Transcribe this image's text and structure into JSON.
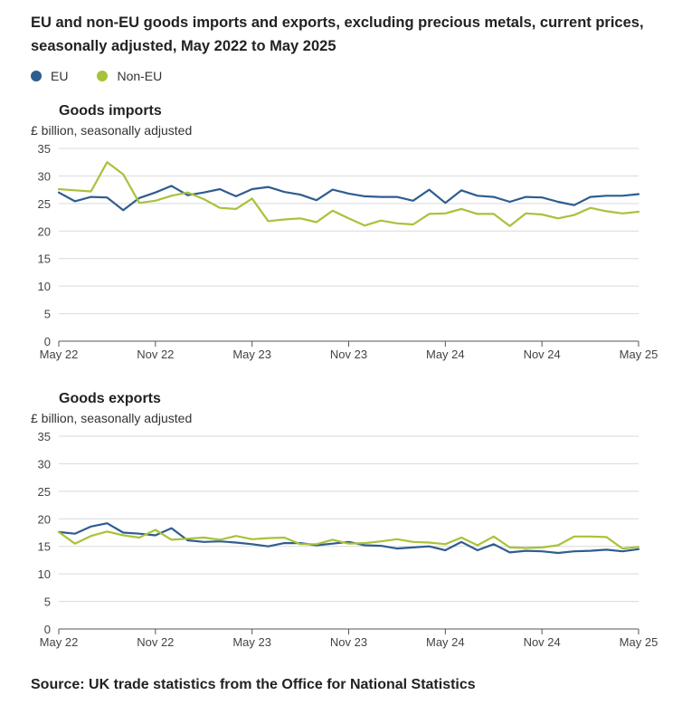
{
  "title": "EU and non-EU goods imports and exports, excluding precious metals, current prices, seasonally adjusted, May 2022 to May 2025",
  "legend": [
    {
      "label": "EU",
      "color": "#2e5d8f"
    },
    {
      "label": "Non-EU",
      "color": "#a8c23a"
    }
  ],
  "source": "Source: UK trade statistics from the Office for National Statistics",
  "chart_data": [
    {
      "type": "line",
      "title": "Goods imports",
      "ylabel": "£ billion, seasonally adjusted",
      "ylim": [
        0,
        35
      ],
      "yticks": [
        0,
        5,
        10,
        15,
        20,
        25,
        30,
        35
      ],
      "xtick_labels": [
        "May 22",
        "Nov 22",
        "May 23",
        "Nov 23",
        "May 24",
        "Nov 24",
        "May 25"
      ],
      "grid": true,
      "series": [
        {
          "name": "EU",
          "color": "#2e5d8f",
          "values": [
            27.0,
            25.4,
            26.2,
            26.1,
            23.8,
            26.0,
            27.0,
            28.2,
            26.5,
            27.0,
            27.6,
            26.3,
            27.6,
            28.0,
            27.1,
            26.6,
            25.6,
            27.5,
            26.8,
            26.3,
            26.2,
            26.2,
            25.5,
            27.5,
            25.1,
            27.4,
            26.4,
            26.2,
            25.3,
            26.2,
            26.1,
            25.3,
            24.7,
            26.2,
            26.4,
            26.4,
            26.7
          ]
        },
        {
          "name": "Non-EU",
          "color": "#a8c23a",
          "values": [
            27.6,
            27.4,
            27.2,
            32.5,
            30.3,
            25.1,
            25.5,
            26.4,
            27.0,
            25.8,
            24.2,
            24.0,
            25.9,
            21.8,
            22.1,
            22.3,
            21.6,
            23.7,
            22.3,
            21.0,
            21.9,
            21.4,
            21.2,
            23.1,
            23.2,
            24.0,
            23.1,
            23.1,
            20.9,
            23.2,
            23.0,
            22.3,
            22.9,
            24.2,
            23.6,
            23.2,
            23.5
          ]
        }
      ]
    },
    {
      "type": "line",
      "title": "Goods exports",
      "ylabel": "£ billion, seasonally adjusted",
      "ylim": [
        0,
        35
      ],
      "yticks": [
        0,
        5,
        10,
        15,
        20,
        25,
        30,
        35
      ],
      "xtick_labels": [
        "May 22",
        "Nov 22",
        "May 23",
        "Nov 23",
        "May 24",
        "Nov 24",
        "May 25"
      ],
      "grid": true,
      "series": [
        {
          "name": "EU",
          "color": "#2e5d8f",
          "values": [
            17.6,
            17.3,
            18.6,
            19.2,
            17.5,
            17.3,
            17.0,
            18.3,
            16.1,
            15.8,
            15.9,
            15.7,
            15.4,
            15.0,
            15.6,
            15.6,
            15.2,
            15.5,
            15.8,
            15.2,
            15.1,
            14.6,
            14.8,
            15.0,
            14.3,
            15.8,
            14.3,
            15.4,
            13.9,
            14.2,
            14.1,
            13.8,
            14.1,
            14.2,
            14.4,
            14.1,
            14.5
          ]
        },
        {
          "name": "Non-EU",
          "color": "#a8c23a",
          "values": [
            17.6,
            15.5,
            16.9,
            17.7,
            17.0,
            16.6,
            18.0,
            16.2,
            16.4,
            16.6,
            16.2,
            16.9,
            16.3,
            16.5,
            16.6,
            15.4,
            15.4,
            16.2,
            15.5,
            15.6,
            15.9,
            16.3,
            15.8,
            15.7,
            15.4,
            16.6,
            15.2,
            16.8,
            14.8,
            14.7,
            14.8,
            15.2,
            16.8,
            16.8,
            16.7,
            14.6,
            14.9
          ]
        }
      ]
    }
  ]
}
